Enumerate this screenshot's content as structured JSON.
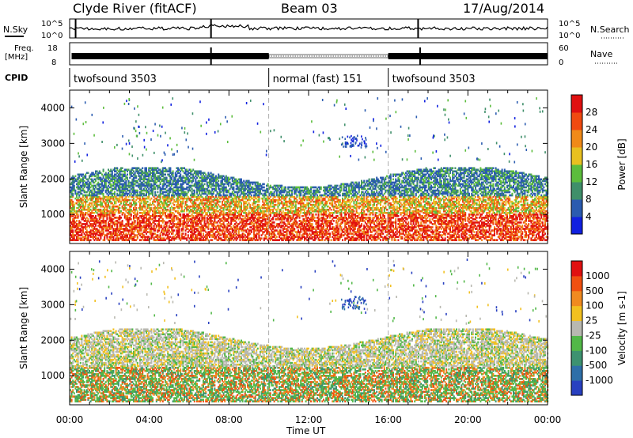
{
  "header": {
    "station": "Clyde River (fitACF)",
    "beam": "Beam 03",
    "date": "17/Aug/2014"
  },
  "strip_labels": {
    "nsky": "N.Sky",
    "nsearch": "N.Search",
    "freq_line1": "Freq.",
    "freq_line2": "[MHz]",
    "nave": "Nave",
    "cpid": "CPID",
    "noise_top": "10^5",
    "noise_bottom": "10^0",
    "freq_top": "18",
    "freq_bottom": "8",
    "nave_top": "60",
    "nave_bottom": "0"
  },
  "cpid_segments": [
    {
      "label": "twofsound 3503",
      "start_hour": 0,
      "end_hour": 10
    },
    {
      "label": "normal (fast) 151",
      "start_hour": 10,
      "end_hour": 16
    },
    {
      "label": "twofsound 3503",
      "start_hour": 16,
      "end_hour": 24
    }
  ],
  "chart_data": [
    {
      "type": "heatmap",
      "ylabel": "Slant Range [km]",
      "xlabel": "",
      "xlim": [
        0,
        24
      ],
      "ylim": [
        180,
        4500
      ],
      "yticks": [
        1000,
        2000,
        3000,
        4000
      ],
      "colorbar": {
        "label": "Power [dB]",
        "ticks": [
          "4",
          "8",
          "12",
          "16",
          "20",
          "24",
          "28"
        ],
        "colors": [
          "#1020e0",
          "#2a5bb0",
          "#3f8f6a",
          "#5cbd3c",
          "#e8c020",
          "#f08a18",
          "#f04a10",
          "#e01010"
        ]
      }
    },
    {
      "type": "heatmap",
      "ylabel": "Slant Range [km]",
      "xlabel": "Time UT",
      "xlim": [
        0,
        24
      ],
      "ylim": [
        180,
        4500
      ],
      "yticks": [
        1000,
        2000,
        3000,
        4000
      ],
      "xticks": [
        "00:00",
        "04:00",
        "08:00",
        "12:00",
        "16:00",
        "20:00",
        "00:00"
      ],
      "colorbar": {
        "label": "Velocity [m s-1]",
        "ticks": [
          "1000",
          "500",
          "100",
          "25",
          "-25",
          "-100",
          "-500",
          "-1000"
        ],
        "colors": [
          "#2840c0",
          "#2e6fa8",
          "#3d9270",
          "#52b848",
          "#b8b8b0",
          "#f2c020",
          "#f08a20",
          "#f05010",
          "#e01010"
        ]
      }
    }
  ]
}
